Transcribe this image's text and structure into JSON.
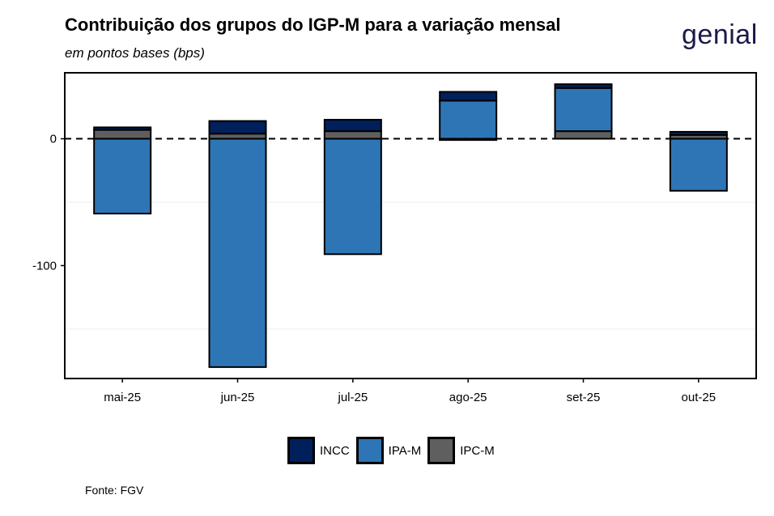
{
  "header": {
    "title": "Contribuição dos grupos do IGP-M para a variação mensal",
    "subtitle": "em pontos bases (bps)",
    "logo": "genial"
  },
  "source": "Fonte: FGV",
  "chart_data": {
    "type": "bar",
    "stacked": true,
    "title": "Contribuição dos grupos do IGP-M para a variação mensal",
    "subtitle": "em pontos bases (bps)",
    "xlabel": "",
    "ylabel": "",
    "categories": [
      "mai-25",
      "jun-25",
      "jul-25",
      "ago-25",
      "set-25",
      "out-25"
    ],
    "series": [
      {
        "name": "IPC-M",
        "color": "#5f5f5f",
        "values": [
          7,
          4,
          6,
          -1,
          6,
          3
        ]
      },
      {
        "name": "IPA-M",
        "color": "#2e75b6",
        "values": [
          -59,
          -180,
          -91,
          30,
          34,
          -41
        ]
      },
      {
        "name": "INCC",
        "color": "#00205b",
        "values": [
          2,
          10,
          9,
          7,
          3,
          2.5
        ]
      }
    ],
    "legend_order": [
      "INCC",
      "IPA-M",
      "IPC-M"
    ],
    "ylim": [
      -189,
      52
    ],
    "yticks": [
      0,
      -100
    ],
    "ytick_labels": [
      "0",
      "-100"
    ],
    "minor_grid": [
      -50,
      -150
    ],
    "reference_line": 0,
    "legend_position": "bottom"
  }
}
